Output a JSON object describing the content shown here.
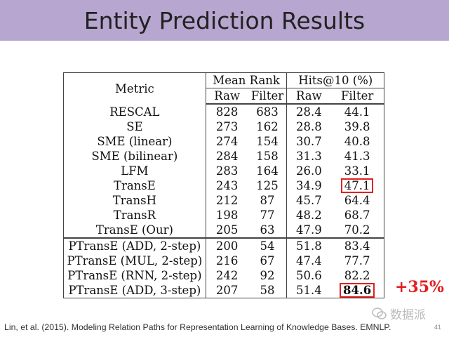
{
  "slide": {
    "title": "Entity Prediction Results",
    "citation": "Lin, et al. (2015). Modeling Relation Paths for Representation Learning of Knowledge Bases. EMNLP.",
    "page_number": "41",
    "improvement_label": "+35%",
    "watermark": "数据派",
    "colors": {
      "header_bg": "#b7a6cf",
      "highlight_box": "#e02020",
      "improvement_text": "#e01e1e"
    }
  },
  "table": {
    "header": {
      "metric": "Metric",
      "mean_rank": "Mean Rank",
      "hits": "Hits@10 (%)",
      "raw": "Raw",
      "filter": "Filter"
    },
    "rows": [
      {
        "method": "RESCAL",
        "mr_raw": "828",
        "mr_filter": "683",
        "h_raw": "28.4",
        "h_filter": "44.1"
      },
      {
        "method": "SE",
        "mr_raw": "273",
        "mr_filter": "162",
        "h_raw": "28.8",
        "h_filter": "39.8"
      },
      {
        "method": "SME (linear)",
        "mr_raw": "274",
        "mr_filter": "154",
        "h_raw": "30.7",
        "h_filter": "40.8"
      },
      {
        "method": "SME (bilinear)",
        "mr_raw": "284",
        "mr_filter": "158",
        "h_raw": "31.3",
        "h_filter": "41.3"
      },
      {
        "method": "LFM",
        "mr_raw": "283",
        "mr_filter": "164",
        "h_raw": "26.0",
        "h_filter": "33.1"
      },
      {
        "method": "TransE",
        "mr_raw": "243",
        "mr_filter": "125",
        "h_raw": "34.9",
        "h_filter": "47.1"
      },
      {
        "method": "TransH",
        "mr_raw": "212",
        "mr_filter": "87",
        "h_raw": "45.7",
        "h_filter": "64.4"
      },
      {
        "method": "TransR",
        "mr_raw": "198",
        "mr_filter": "77",
        "h_raw": "48.2",
        "h_filter": "68.7"
      },
      {
        "method": "TransE (Our)",
        "mr_raw": "205",
        "mr_filter": "63",
        "h_raw": "47.9",
        "h_filter": "70.2"
      },
      {
        "method": "PTransE (ADD, 2-step)",
        "mr_raw": "200",
        "mr_filter": "54",
        "h_raw": "51.8",
        "h_filter": "83.4"
      },
      {
        "method": "PTransE (MUL, 2-step)",
        "mr_raw": "216",
        "mr_filter": "67",
        "h_raw": "47.4",
        "h_filter": "77.7"
      },
      {
        "method": "PTransE (RNN, 2-step)",
        "mr_raw": "242",
        "mr_filter": "92",
        "h_raw": "50.6",
        "h_filter": "82.2"
      },
      {
        "method": "PTransE (ADD, 3-step)",
        "mr_raw": "207",
        "mr_filter": "58",
        "h_raw": "51.4",
        "h_filter": "84.6"
      }
    ]
  }
}
